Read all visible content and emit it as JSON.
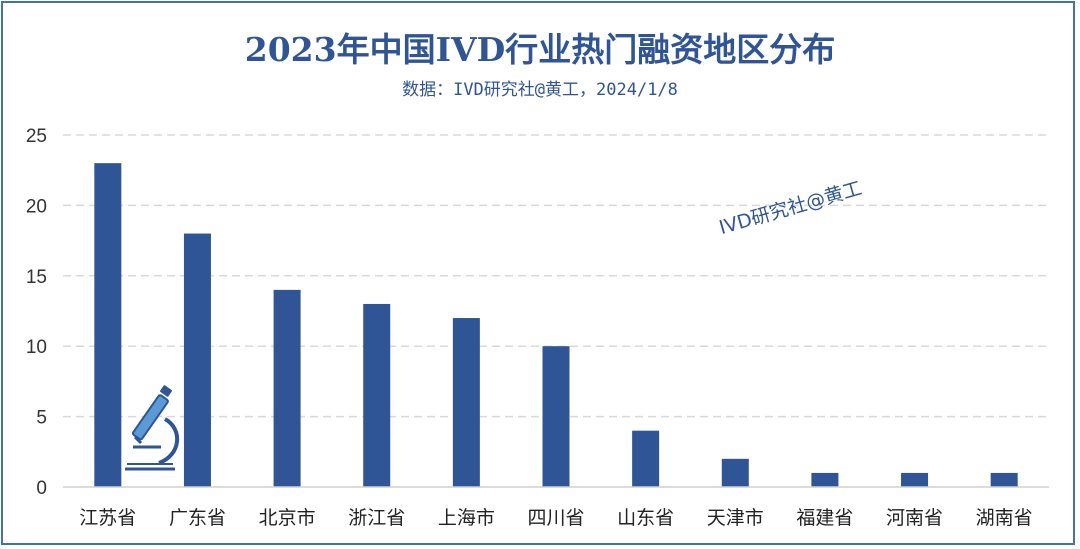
{
  "title": "2023年中国IVD行业热门融资地区分布",
  "subtitle": "数据：IVD研究社@黄工，2024/1/8",
  "watermark": "IVD研究社@黄工",
  "colors": {
    "bar": "#2f5597",
    "grid": "#d9d9d9",
    "accent": "#2f5597"
  },
  "icons": [
    "microscope-icon"
  ],
  "chart_data": {
    "type": "bar",
    "categories": [
      "江苏省",
      "广东省",
      "北京市",
      "浙江省",
      "上海市",
      "四川省",
      "山东省",
      "天津市",
      "福建省",
      "河南省",
      "湖南省"
    ],
    "values": [
      23,
      18,
      14,
      13,
      12,
      10,
      4,
      2,
      1,
      1,
      1
    ],
    "title": "2023年中国IVD行业热门融资地区分布",
    "xlabel": "",
    "ylabel": "",
    "ylim": [
      0,
      25
    ],
    "yticks": [
      "0",
      "5",
      "10",
      "15",
      "20",
      "25"
    ],
    "grid": true,
    "legend": "none"
  }
}
